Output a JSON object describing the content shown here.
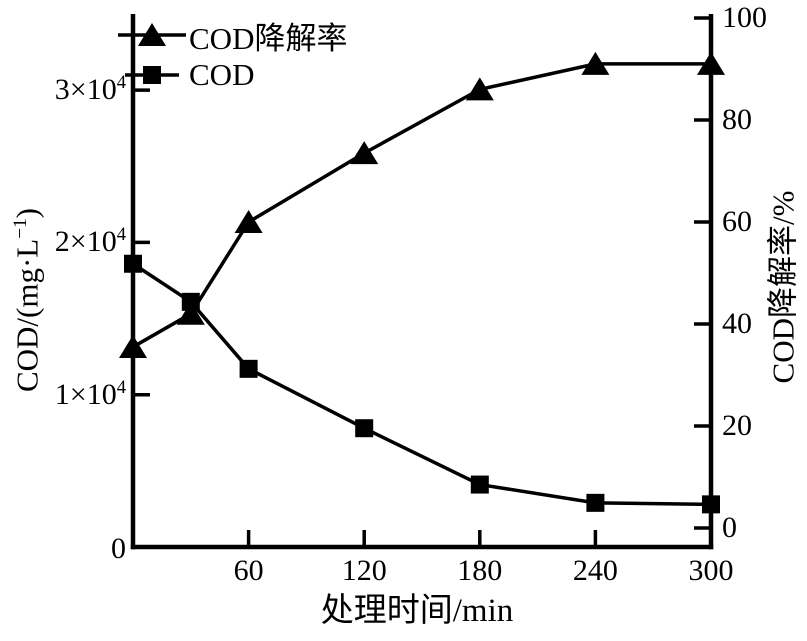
{
  "figure": {
    "background": "#ffffff",
    "ink_color": "#000000"
  },
  "chart_data": {
    "type": "line",
    "title": "",
    "x": [
      0,
      30,
      60,
      120,
      180,
      240,
      300
    ],
    "x_axis": {
      "title": "处理时间/min",
      "range": [
        0,
        300
      ],
      "ticks": [
        60,
        120,
        180,
        240,
        300
      ],
      "tick_labels": [
        "60",
        "120",
        "180",
        "240",
        "300"
      ]
    },
    "left_axis": {
      "title_pre": "COD/(mg·L",
      "title_sup": "−1",
      "title_post": ")",
      "title_plain": "COD/(mg·L⁻¹)",
      "range": [
        0,
        35000
      ],
      "ticks": [
        0,
        10000,
        20000,
        30000
      ],
      "tick_labels": [
        {
          "base": "0",
          "sup": ""
        },
        {
          "base": "1×10",
          "sup": "4"
        },
        {
          "base": "2×10",
          "sup": "4"
        },
        {
          "base": "3×10",
          "sup": "4"
        }
      ]
    },
    "right_axis": {
      "title": "COD降解率/%",
      "range": [
        -3.7,
        100.8
      ],
      "ticks": [
        0,
        20,
        40,
        60,
        80,
        100
      ],
      "tick_labels": [
        "0",
        "20",
        "40",
        "60",
        "80",
        "100"
      ]
    },
    "grid": false,
    "legend_position": "top-left-inside",
    "series": [
      {
        "name": "COD降解率",
        "axis": "right",
        "marker": "triangle",
        "color": "#000000",
        "values": [
          35.5,
          42,
          60,
          73.5,
          86,
          91,
          91
        ]
      },
      {
        "name": "COD",
        "axis": "left",
        "marker": "square",
        "color": "#000000",
        "values": [
          18600,
          16100,
          11700,
          7800,
          4100,
          2900,
          2800
        ]
      }
    ]
  }
}
